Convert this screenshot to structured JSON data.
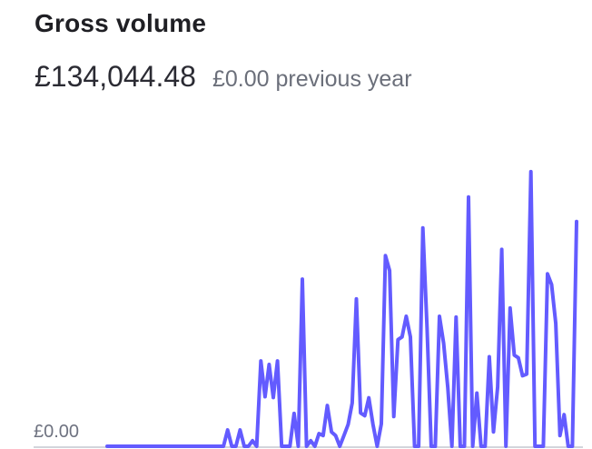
{
  "title": "Gross volume",
  "summary": {
    "amount": "£134,044.48",
    "previous_year": "£0.00 previous year"
  },
  "colors": {
    "line": "#635bff",
    "baseline": "#c3c7d1",
    "text_primary": "#1f1f24",
    "text_secondary": "#6b6f7a"
  },
  "chart_data": {
    "type": "line",
    "title": "Gross volume",
    "ylabel": "",
    "xlabel": "",
    "y_tick_label": "£0.00",
    "grid": false,
    "legend": "none",
    "ylim": [
      0,
      100
    ],
    "series": [
      {
        "values": [
          0.0,
          0.0,
          0.0,
          0.0,
          0.0,
          0.0,
          0.0,
          0.0,
          0.0,
          0.0,
          0.0,
          0.0,
          0.0,
          0.0,
          0.0,
          0.0,
          0.0,
          0.0,
          0.0,
          0.0,
          0.0,
          0.0,
          0.0,
          0.0,
          0.0,
          0.0,
          0.0,
          0.0,
          0.0,
          5.9,
          0.0,
          0.0,
          5.9,
          0.0,
          0.0,
          2.0,
          0.0,
          31.0,
          18.0,
          29.7,
          17.7,
          31.0,
          0.0,
          0.0,
          0.0,
          11.9,
          0.0,
          60.7,
          0.0,
          2.0,
          0.0,
          4.6,
          3.9,
          14.8,
          5.2,
          3.9,
          0.0,
          3.9,
          7.9,
          15.7,
          53.5,
          12.1,
          11.1,
          17.6,
          7.9,
          0.0,
          8.2,
          69.2,
          63.8,
          10.8,
          38.7,
          39.7,
          47.2,
          39.7,
          0.0,
          0.0,
          79.3,
          43.3,
          0.0,
          0.0,
          47.2,
          37.4,
          21.3,
          0.0,
          46.9,
          0.0,
          0.0,
          90.5,
          0.0,
          19.3,
          0.0,
          0.0,
          32.5,
          5.2,
          21.6,
          71.5,
          0.0,
          50.2,
          33.1,
          32.1,
          25.6,
          26.2,
          99.7,
          0.0,
          0.0,
          0.0,
          62.6,
          58.7,
          44.6,
          3.9,
          11.5,
          0.0,
          0.0,
          81.6
        ]
      }
    ]
  }
}
